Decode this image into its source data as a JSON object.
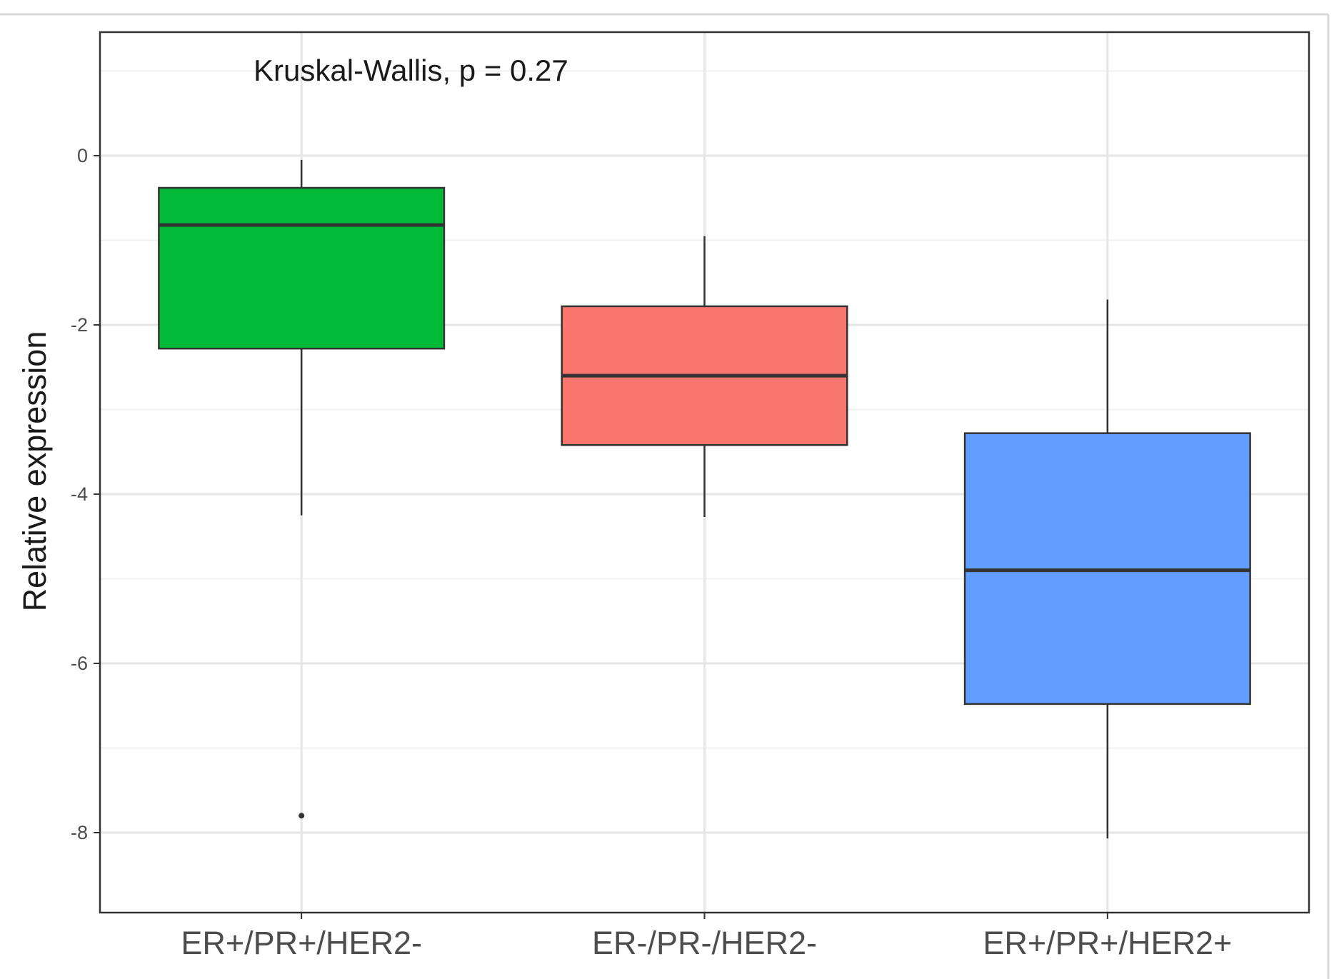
{
  "chart_data": {
    "type": "box",
    "annotation": "Kruskal-Wallis, p = 0.27",
    "xlabel": "",
    "ylabel": "Relative expression",
    "ylim": [
      -9.0,
      1.5
    ],
    "yticks": [
      0,
      -2,
      -4,
      -6,
      -8
    ],
    "ytick_labels": [
      "0",
      "-2",
      "-4",
      "-6",
      "-8"
    ],
    "grid": true,
    "categories": [
      "ER+/PR+/HER2-",
      "ER-/PR-/HER2-",
      "ER+/PR+/HER2+"
    ],
    "boxes": [
      {
        "category": "ER+/PR+/HER2-",
        "color": "#00BA38",
        "whisker_low": -4.25,
        "q1": -2.28,
        "median": -0.82,
        "q3": -0.38,
        "whisker_high": -0.05,
        "outliers": [
          -7.8
        ]
      },
      {
        "category": "ER-/PR-/HER2-",
        "color": "#F8766D",
        "whisker_low": -4.27,
        "q1": -3.42,
        "median": -2.6,
        "q3": -1.78,
        "whisker_high": -0.95,
        "outliers": []
      },
      {
        "category": "ER+/PR+/HER2+",
        "color": "#619CFF",
        "whisker_low": -8.07,
        "q1": -6.48,
        "median": -4.9,
        "q3": -3.28,
        "whisker_high": -1.7,
        "outliers": []
      }
    ]
  }
}
